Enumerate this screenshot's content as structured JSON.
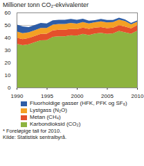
{
  "chart_data": {
    "type": "area",
    "stacked": true,
    "title": "Millioner tonn CO₂-ekvivalenter",
    "footnote": "* Foreløpige tall for 2010.",
    "source": "Kilde: Statistisk sentralbyrå.",
    "x": [
      1990,
      1991,
      1992,
      1993,
      1994,
      1995,
      1996,
      1997,
      1998,
      1999,
      2000,
      2001,
      2002,
      2003,
      2004,
      2005,
      2006,
      2007,
      2008,
      2009,
      2010
    ],
    "xlim": [
      1990,
      2010
    ],
    "xticks": [
      1990,
      1995,
      2000,
      2005,
      2010
    ],
    "ylim": [
      0,
      60
    ],
    "yticks": [
      0,
      10,
      20,
      30,
      40,
      50,
      60
    ],
    "grid": true,
    "legend": "bottom",
    "series": [
      {
        "name": "Karbondioksid (CO₂)",
        "color": "#8db33f",
        "values": [
          35.0,
          33.9,
          34.6,
          36.2,
          37.8,
          37.9,
          40.6,
          41.0,
          41.0,
          41.8,
          41.5,
          42.9,
          42.0,
          43.2,
          43.7,
          42.9,
          43.3,
          45.3,
          44.2,
          43.0,
          45.4
        ]
      },
      {
        "name": "Metan (CH₄)",
        "color": "#e4502b",
        "values": [
          4.9,
          4.9,
          5.0,
          5.0,
          5.1,
          5.1,
          5.1,
          5.2,
          5.2,
          5.2,
          5.1,
          5.0,
          4.9,
          4.7,
          4.6,
          4.6,
          4.6,
          4.6,
          4.6,
          4.4,
          4.5
        ]
      },
      {
        "name": "Lystgass (N₂O)",
        "color": "#f4a024",
        "values": [
          4.9,
          4.7,
          4.5,
          4.6,
          4.7,
          4.6,
          4.6,
          4.7,
          4.6,
          4.6,
          4.5,
          4.4,
          4.4,
          4.3,
          4.6,
          4.6,
          4.4,
          4.4,
          4.4,
          3.2,
          2.7
        ]
      },
      {
        "name": "Fluorholdige gasser (HFK, PFK og SF₆)",
        "color": "#2e5da6",
        "values": [
          5.6,
          5.4,
          4.3,
          4.2,
          4.0,
          3.6,
          3.4,
          3.3,
          3.4,
          3.2,
          3.0,
          2.7,
          2.2,
          1.7,
          1.9,
          1.9,
          1.7,
          1.6,
          1.3,
          1.0,
          1.0
        ]
      }
    ]
  }
}
